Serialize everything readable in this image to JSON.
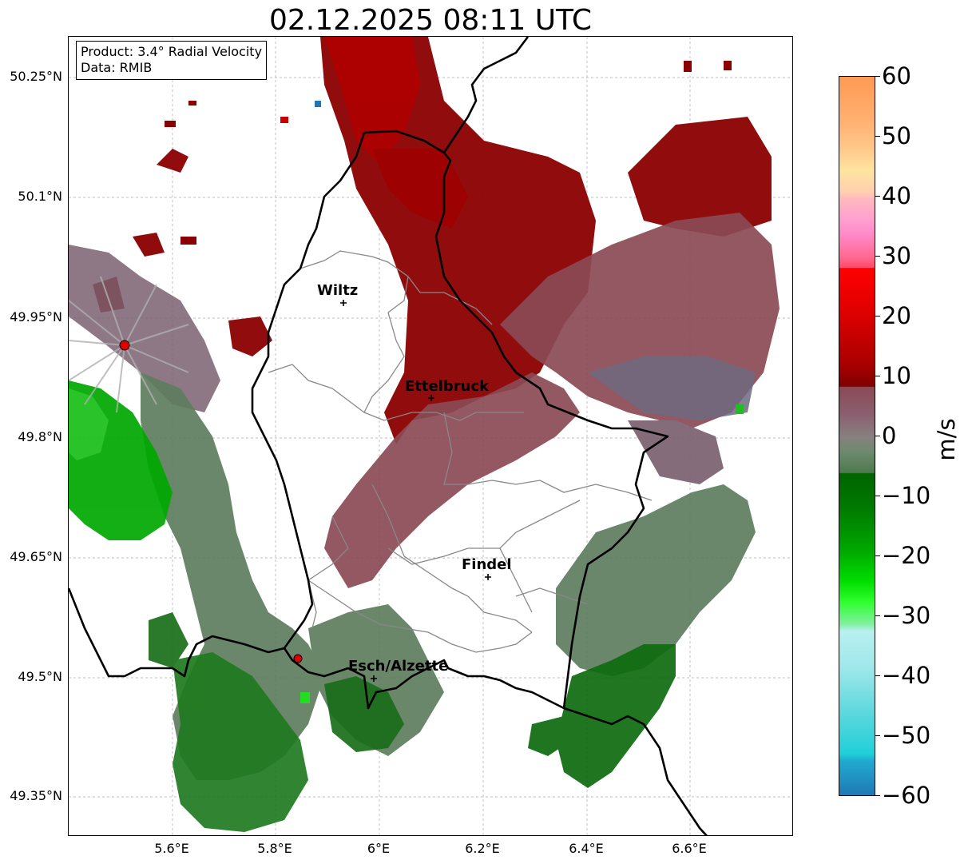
{
  "title": "02.12.2025 08:11 UTC",
  "info": {
    "product": "Product: 3.4° Radial Velocity",
    "data": "Data: RMIB"
  },
  "lat_ticks": [
    "50.25°N",
    "50.1°N",
    "49.95°N",
    "49.8°N",
    "49.65°N",
    "49.5°N",
    "49.35°N"
  ],
  "lon_ticks": [
    "5.6°E",
    "5.8°E",
    "6°E",
    "6.2°E",
    "6.4°E",
    "6.6°E"
  ],
  "cities": [
    {
      "name": "Wiltz"
    },
    {
      "name": "Ettelbruck"
    },
    {
      "name": "Findel"
    },
    {
      "name": "Esch/Alzette"
    }
  ],
  "colorbar": {
    "unit": "m/s",
    "min": -60,
    "max": 60,
    "ticks": [
      "60",
      "50",
      "40",
      "30",
      "20",
      "10",
      "0",
      "−10",
      "−20",
      "−30",
      "−40",
      "−50",
      "−60"
    ]
  },
  "colors": {
    "strong_positive": "#8b0000",
    "positive": "#cc0000",
    "weak_positive": "#8a4a55",
    "near_zero": "#7a6070",
    "weak_negative": "#5e7d5e",
    "negative": "#1a7a1a",
    "strong_negative": "#00a800"
  }
}
